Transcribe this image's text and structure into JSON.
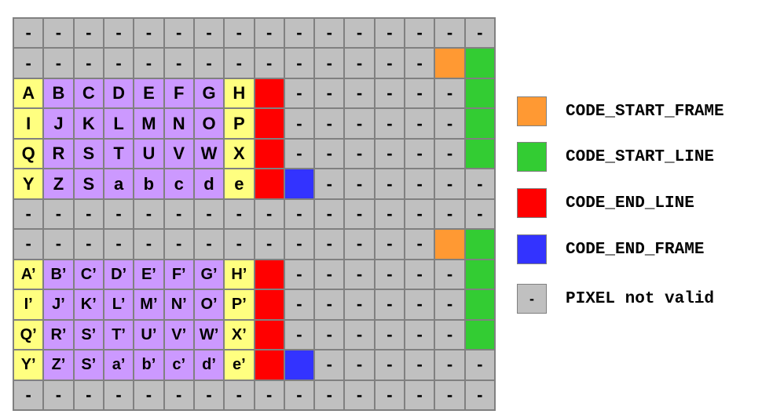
{
  "colors": {
    "invalid": "#c0c0c0",
    "yellow": "#ffff80",
    "purple": "#cc99ff",
    "start_frame": "#ff9933",
    "start_line": "#33cc33",
    "end_line": "#ff0000",
    "end_frame": "#3333ff"
  },
  "grid": {
    "rows": [
      [
        [
          "-",
          "invalid"
        ],
        [
          "-",
          "invalid"
        ],
        [
          "-",
          "invalid"
        ],
        [
          "-",
          "invalid"
        ],
        [
          "-",
          "invalid"
        ],
        [
          "-",
          "invalid"
        ],
        [
          "-",
          "invalid"
        ],
        [
          "-",
          "invalid"
        ],
        [
          "-",
          "invalid"
        ],
        [
          "-",
          "invalid"
        ],
        [
          "-",
          "invalid"
        ],
        [
          "-",
          "invalid"
        ],
        [
          "-",
          "invalid"
        ],
        [
          "-",
          "invalid"
        ],
        [
          "-",
          "invalid"
        ],
        [
          "-",
          "invalid"
        ]
      ],
      [
        [
          "-",
          "invalid"
        ],
        [
          "-",
          "invalid"
        ],
        [
          "-",
          "invalid"
        ],
        [
          "-",
          "invalid"
        ],
        [
          "-",
          "invalid"
        ],
        [
          "-",
          "invalid"
        ],
        [
          "-",
          "invalid"
        ],
        [
          "-",
          "invalid"
        ],
        [
          "-",
          "invalid"
        ],
        [
          "-",
          "invalid"
        ],
        [
          "-",
          "invalid"
        ],
        [
          "-",
          "invalid"
        ],
        [
          "-",
          "invalid"
        ],
        [
          "-",
          "invalid"
        ],
        [
          "",
          "start_frame"
        ],
        [
          "",
          "start_line"
        ]
      ],
      [
        [
          "A",
          "yellow"
        ],
        [
          "B",
          "purple"
        ],
        [
          "C",
          "purple"
        ],
        [
          "D",
          "purple"
        ],
        [
          "E",
          "purple"
        ],
        [
          "F",
          "purple"
        ],
        [
          "G",
          "purple"
        ],
        [
          "H",
          "yellow"
        ],
        [
          "",
          "end_line"
        ],
        [
          "-",
          "invalid"
        ],
        [
          "-",
          "invalid"
        ],
        [
          "-",
          "invalid"
        ],
        [
          "-",
          "invalid"
        ],
        [
          "-",
          "invalid"
        ],
        [
          "-",
          "invalid"
        ],
        [
          "",
          "start_line"
        ]
      ],
      [
        [
          "I",
          "yellow"
        ],
        [
          "J",
          "purple"
        ],
        [
          "K",
          "purple"
        ],
        [
          "L",
          "purple"
        ],
        [
          "M",
          "purple"
        ],
        [
          "N",
          "purple"
        ],
        [
          "O",
          "purple"
        ],
        [
          "P",
          "yellow"
        ],
        [
          "",
          "end_line"
        ],
        [
          "-",
          "invalid"
        ],
        [
          "-",
          "invalid"
        ],
        [
          "-",
          "invalid"
        ],
        [
          "-",
          "invalid"
        ],
        [
          "-",
          "invalid"
        ],
        [
          "-",
          "invalid"
        ],
        [
          "",
          "start_line"
        ]
      ],
      [
        [
          "Q",
          "yellow"
        ],
        [
          "R",
          "purple"
        ],
        [
          "S",
          "purple"
        ],
        [
          "T",
          "purple"
        ],
        [
          "U",
          "purple"
        ],
        [
          "V",
          "purple"
        ],
        [
          "W",
          "purple"
        ],
        [
          "X",
          "yellow"
        ],
        [
          "",
          "end_line"
        ],
        [
          "-",
          "invalid"
        ],
        [
          "-",
          "invalid"
        ],
        [
          "-",
          "invalid"
        ],
        [
          "-",
          "invalid"
        ],
        [
          "-",
          "invalid"
        ],
        [
          "-",
          "invalid"
        ],
        [
          "",
          "start_line"
        ]
      ],
      [
        [
          "Y",
          "yellow"
        ],
        [
          "Z",
          "purple"
        ],
        [
          "S",
          "purple"
        ],
        [
          "a",
          "purple"
        ],
        [
          "b",
          "purple"
        ],
        [
          "c",
          "purple"
        ],
        [
          "d",
          "purple"
        ],
        [
          "e",
          "yellow"
        ],
        [
          "",
          "end_line"
        ],
        [
          "",
          "end_frame"
        ],
        [
          "-",
          "invalid"
        ],
        [
          "-",
          "invalid"
        ],
        [
          "-",
          "invalid"
        ],
        [
          "-",
          "invalid"
        ],
        [
          "-",
          "invalid"
        ],
        [
          "-",
          "invalid"
        ]
      ],
      [
        [
          "-",
          "invalid"
        ],
        [
          "-",
          "invalid"
        ],
        [
          "-",
          "invalid"
        ],
        [
          "-",
          "invalid"
        ],
        [
          "-",
          "invalid"
        ],
        [
          "-",
          "invalid"
        ],
        [
          "-",
          "invalid"
        ],
        [
          "-",
          "invalid"
        ],
        [
          "-",
          "invalid"
        ],
        [
          "-",
          "invalid"
        ],
        [
          "-",
          "invalid"
        ],
        [
          "-",
          "invalid"
        ],
        [
          "-",
          "invalid"
        ],
        [
          "-",
          "invalid"
        ],
        [
          "-",
          "invalid"
        ],
        [
          "-",
          "invalid"
        ]
      ],
      [
        [
          "-",
          "invalid"
        ],
        [
          "-",
          "invalid"
        ],
        [
          "-",
          "invalid"
        ],
        [
          "-",
          "invalid"
        ],
        [
          "-",
          "invalid"
        ],
        [
          "-",
          "invalid"
        ],
        [
          "-",
          "invalid"
        ],
        [
          "-",
          "invalid"
        ],
        [
          "-",
          "invalid"
        ],
        [
          "-",
          "invalid"
        ],
        [
          "-",
          "invalid"
        ],
        [
          "-",
          "invalid"
        ],
        [
          "-",
          "invalid"
        ],
        [
          "-",
          "invalid"
        ],
        [
          "",
          "start_frame"
        ],
        [
          "",
          "start_line"
        ]
      ],
      [
        [
          "A’",
          "yellow"
        ],
        [
          "B’",
          "purple"
        ],
        [
          "C’",
          "purple"
        ],
        [
          "D’",
          "purple"
        ],
        [
          "E’",
          "purple"
        ],
        [
          "F’",
          "purple"
        ],
        [
          "G’",
          "purple"
        ],
        [
          "H’",
          "yellow"
        ],
        [
          "",
          "end_line"
        ],
        [
          "-",
          "invalid"
        ],
        [
          "-",
          "invalid"
        ],
        [
          "-",
          "invalid"
        ],
        [
          "-",
          "invalid"
        ],
        [
          "-",
          "invalid"
        ],
        [
          "-",
          "invalid"
        ],
        [
          "",
          "start_line"
        ]
      ],
      [
        [
          "I’",
          "yellow"
        ],
        [
          "J’",
          "purple"
        ],
        [
          "K’",
          "purple"
        ],
        [
          "L’",
          "purple"
        ],
        [
          "M’",
          "purple"
        ],
        [
          "N’",
          "purple"
        ],
        [
          "O’",
          "purple"
        ],
        [
          "P’",
          "yellow"
        ],
        [
          "",
          "end_line"
        ],
        [
          "-",
          "invalid"
        ],
        [
          "-",
          "invalid"
        ],
        [
          "-",
          "invalid"
        ],
        [
          "-",
          "invalid"
        ],
        [
          "-",
          "invalid"
        ],
        [
          "-",
          "invalid"
        ],
        [
          "",
          "start_line"
        ]
      ],
      [
        [
          "Q’",
          "yellow"
        ],
        [
          "R’",
          "purple"
        ],
        [
          "S’",
          "purple"
        ],
        [
          "T’",
          "purple"
        ],
        [
          "U’",
          "purple"
        ],
        [
          "V’",
          "purple"
        ],
        [
          "W’",
          "purple"
        ],
        [
          "X’",
          "yellow"
        ],
        [
          "",
          "end_line"
        ],
        [
          "-",
          "invalid"
        ],
        [
          "-",
          "invalid"
        ],
        [
          "-",
          "invalid"
        ],
        [
          "-",
          "invalid"
        ],
        [
          "-",
          "invalid"
        ],
        [
          "-",
          "invalid"
        ],
        [
          "",
          "start_line"
        ]
      ],
      [
        [
          "Y’",
          "yellow"
        ],
        [
          "Z’",
          "purple"
        ],
        [
          "S’",
          "purple"
        ],
        [
          "a’",
          "purple"
        ],
        [
          "b’",
          "purple"
        ],
        [
          "c’",
          "purple"
        ],
        [
          "d’",
          "purple"
        ],
        [
          "e’",
          "yellow"
        ],
        [
          "",
          "end_line"
        ],
        [
          "",
          "end_frame"
        ],
        [
          "-",
          "invalid"
        ],
        [
          "-",
          "invalid"
        ],
        [
          "-",
          "invalid"
        ],
        [
          "-",
          "invalid"
        ],
        [
          "-",
          "invalid"
        ],
        [
          "-",
          "invalid"
        ]
      ],
      [
        [
          "-",
          "invalid"
        ],
        [
          "-",
          "invalid"
        ],
        [
          "-",
          "invalid"
        ],
        [
          "-",
          "invalid"
        ],
        [
          "-",
          "invalid"
        ],
        [
          "-",
          "invalid"
        ],
        [
          "-",
          "invalid"
        ],
        [
          "-",
          "invalid"
        ],
        [
          "-",
          "invalid"
        ],
        [
          "-",
          "invalid"
        ],
        [
          "-",
          "invalid"
        ],
        [
          "-",
          "invalid"
        ],
        [
          "-",
          "invalid"
        ],
        [
          "-",
          "invalid"
        ],
        [
          "-",
          "invalid"
        ],
        [
          "-",
          "invalid"
        ]
      ]
    ]
  },
  "legend": [
    {
      "swatch_text": "",
      "color_key": "start_frame",
      "label": "CODE_START_FRAME"
    },
    {
      "swatch_text": "",
      "color_key": "start_line",
      "label": "CODE_START_LINE"
    },
    {
      "swatch_text": "",
      "color_key": "end_line",
      "label": "CODE_END_LINE"
    },
    {
      "swatch_text": "",
      "color_key": "end_frame",
      "label": "CODE_END_FRAME"
    },
    {
      "swatch_text": "-",
      "color_key": "invalid",
      "label": "PIXEL not valid"
    }
  ]
}
